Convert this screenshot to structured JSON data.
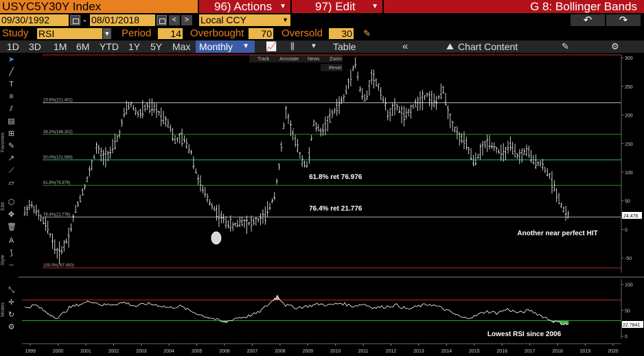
{
  "header": {
    "ticker": "USYC5Y30Y Index",
    "actions_label": "96) Actions",
    "edit_label": "97) Edit",
    "study_title": "G 8: Bollinger Bands"
  },
  "range": {
    "start_date": "09/30/1992",
    "dash": "-",
    "end_date": "08/01/2018",
    "currency": "Local CCY"
  },
  "study_row": {
    "study_label": "Study",
    "study_value": "RSI",
    "period_label": "Period",
    "period_value": "14",
    "overbought_label": "Overbought",
    "overbought_value": "70",
    "oversold_label": "Oversold",
    "oversold_value": "30"
  },
  "toolbar": {
    "periods": [
      "1D",
      "3D",
      "1M",
      "6M",
      "YTD",
      "1Y",
      "5Y",
      "Max"
    ],
    "frequency": "Monthly",
    "table_label": "Table",
    "chart_content_label": "Chart Content"
  },
  "chart_tools": {
    "track": "Track",
    "annotate": "Annotate",
    "news": "News",
    "zoom": "Zoom",
    "reset": "Reset"
  },
  "side_labels": {
    "favorites": "Favorites",
    "edit": "Edit",
    "style": "Style",
    "modes": "Modes"
  },
  "colors": {
    "price": "#ffffff",
    "fib_0": "#c82a2a",
    "fib_236": "#bfbfbf",
    "fib_382": "#2ea52e",
    "fib_50": "#2ab3b3",
    "fib_618": "#2ea52e",
    "fib_764": "#bfbfbf",
    "fib_100": "#c82a2a",
    "rsi_overbought": "#c82a2a",
    "rsi_oversold": "#2ea52e",
    "highlight_circle": "#d8d8d8"
  },
  "chart_data": [
    {
      "type": "line",
      "subtype": "ohlc-bar",
      "series": [
        {
          "x": [
            1999,
            2000,
            2001,
            2002,
            2003,
            2004,
            2005,
            2006,
            2007,
            2008,
            2009,
            2010,
            2011,
            2012,
            2013,
            2014,
            2015,
            2016,
            2017,
            2018
          ],
          "values": [
            15,
            -35,
            55,
            200,
            195,
            155,
            40,
            10,
            20,
            170,
            180,
            225,
            260,
            200,
            230,
            190,
            120,
            135,
            100,
            24.5
          ]
        }
      ],
      "price_path": [
        [
          1998.8,
          30
        ],
        [
          1999.0,
          45
        ],
        [
          1999.3,
          25
        ],
        [
          1999.6,
          5
        ],
        [
          1999.8,
          -20
        ],
        [
          2000.0,
          -45
        ],
        [
          2000.2,
          -30
        ],
        [
          2000.4,
          -10
        ],
        [
          2000.6,
          30
        ],
        [
          2000.8,
          55
        ],
        [
          2001.0,
          80
        ],
        [
          2001.2,
          110
        ],
        [
          2001.4,
          145
        ],
        [
          2001.6,
          125
        ],
        [
          2001.9,
          135
        ],
        [
          2002.2,
          165
        ],
        [
          2002.4,
          205
        ],
        [
          2002.6,
          220
        ],
        [
          2002.9,
          200
        ],
        [
          2003.2,
          215
        ],
        [
          2003.5,
          210
        ],
        [
          2003.8,
          195
        ],
        [
          2004.0,
          185
        ],
        [
          2004.2,
          155
        ],
        [
          2004.5,
          160
        ],
        [
          2004.8,
          135
        ],
        [
          2005.0,
          95
        ],
        [
          2005.2,
          70
        ],
        [
          2005.5,
          45
        ],
        [
          2005.8,
          25
        ],
        [
          2006.0,
          15
        ],
        [
          2006.3,
          5
        ],
        [
          2006.6,
          15
        ],
        [
          2006.9,
          10
        ],
        [
          2007.2,
          15
        ],
        [
          2007.5,
          25
        ],
        [
          2007.8,
          60
        ],
        [
          2008.0,
          120
        ],
        [
          2008.2,
          210
        ],
        [
          2008.5,
          160
        ],
        [
          2008.8,
          120
        ],
        [
          2009.0,
          110
        ],
        [
          2009.2,
          185
        ],
        [
          2009.5,
          170
        ],
        [
          2009.8,
          195
        ],
        [
          2010.0,
          210
        ],
        [
          2010.3,
          230
        ],
        [
          2010.5,
          260
        ],
        [
          2010.7,
          295
        ],
        [
          2010.9,
          240
        ],
        [
          2011.1,
          225
        ],
        [
          2011.3,
          270
        ],
        [
          2011.6,
          245
        ],
        [
          2011.9,
          200
        ],
        [
          2012.2,
          215
        ],
        [
          2012.5,
          195
        ],
        [
          2012.8,
          215
        ],
        [
          2013.0,
          225
        ],
        [
          2013.3,
          235
        ],
        [
          2013.6,
          220
        ],
        [
          2013.9,
          245
        ],
        [
          2014.1,
          195
        ],
        [
          2014.4,
          165
        ],
        [
          2014.7,
          150
        ],
        [
          2015.0,
          115
        ],
        [
          2015.2,
          135
        ],
        [
          2015.5,
          155
        ],
        [
          2015.8,
          140
        ],
        [
          2016.0,
          130
        ],
        [
          2016.3,
          145
        ],
        [
          2016.6,
          125
        ],
        [
          2016.9,
          140
        ],
        [
          2017.1,
          120
        ],
        [
          2017.4,
          115
        ],
        [
          2017.7,
          95
        ],
        [
          2018.0,
          60
        ],
        [
          2018.2,
          35
        ],
        [
          2018.4,
          24.5
        ]
      ],
      "xlim": [
        1998.7,
        2020.3
      ],
      "ylim": [
        -75,
        305
      ],
      "y_ticks": [
        -50,
        0,
        50,
        100,
        150,
        200,
        250,
        300
      ],
      "x_ticks": [
        1999,
        2000,
        2001,
        2002,
        2003,
        2004,
        2005,
        2006,
        2007,
        2008,
        2009,
        2010,
        2011,
        2012,
        2013,
        2014,
        2015,
        2016,
        2017,
        2018,
        2019,
        2020
      ],
      "last_value": "24.476",
      "fib_levels": [
        {
          "pct": "0",
          "value": 305,
          "label": "",
          "color_key": "fib_0"
        },
        {
          "pct": "23.6",
          "value": 221.401,
          "label": "23.6%(221.401)",
          "color_key": "fib_236"
        },
        {
          "pct": "38.2",
          "value": 166.202,
          "label": "38.2%(166.202)",
          "color_key": "fib_382"
        },
        {
          "pct": "50.0",
          "value": 121.589,
          "label": "50.0%(121.589)",
          "color_key": "fib_50"
        },
        {
          "pct": "61.8",
          "value": 76.976,
          "label": "61.8%(76.976)",
          "color_key": "fib_618"
        },
        {
          "pct": "76.4",
          "value": 21.776,
          "label": "76.4%(21.776)",
          "color_key": "fib_764"
        },
        {
          "pct": "100.0",
          "value": -67.45,
          "label": "100.0%(-67.450)",
          "color_key": "fib_100"
        }
      ],
      "annotations": [
        {
          "text": "61.8% ret 76.976",
          "x": 2010.0,
          "y": 88
        },
        {
          "text": "76.4% ret 21.776",
          "x": 2010.0,
          "y": 33
        },
        {
          "text": "Another near perfect HIT",
          "x": 2018.0,
          "y": -10
        }
      ],
      "circle_marker": {
        "x": 2005.7,
        "y": -15
      }
    },
    {
      "type": "line",
      "series": [
        {
          "x": [
            1999,
            2000,
            2001,
            2002,
            2003,
            2004,
            2005,
            2006,
            2007,
            2008,
            2009,
            2010,
            2011,
            2012,
            2013,
            2014,
            2015,
            2016,
            2017,
            2018
          ],
          "values": [
            55,
            40,
            65,
            60,
            62,
            55,
            38,
            25,
            35,
            78,
            60,
            62,
            60,
            58,
            60,
            38,
            45,
            50,
            45,
            22.8
          ]
        }
      ],
      "rsi_path": [
        [
          1998.8,
          55
        ],
        [
          1999.2,
          60
        ],
        [
          1999.6,
          45
        ],
        [
          2000.0,
          35
        ],
        [
          2000.4,
          55
        ],
        [
          2000.8,
          62
        ],
        [
          2001.2,
          68
        ],
        [
          2001.6,
          60
        ],
        [
          2002.0,
          62
        ],
        [
          2002.4,
          65
        ],
        [
          2002.8,
          58
        ],
        [
          2003.2,
          63
        ],
        [
          2003.6,
          60
        ],
        [
          2004.0,
          55
        ],
        [
          2004.4,
          58
        ],
        [
          2004.8,
          48
        ],
        [
          2005.2,
          40
        ],
        [
          2005.6,
          34
        ],
        [
          2006.0,
          26
        ],
        [
          2006.4,
          35
        ],
        [
          2006.8,
          38
        ],
        [
          2007.2,
          45
        ],
        [
          2007.6,
          62
        ],
        [
          2007.9,
          78
        ],
        [
          2008.2,
          60
        ],
        [
          2008.6,
          55
        ],
        [
          2009.0,
          58
        ],
        [
          2009.4,
          62
        ],
        [
          2009.8,
          60
        ],
        [
          2010.2,
          64
        ],
        [
          2010.6,
          58
        ],
        [
          2011.0,
          62
        ],
        [
          2011.4,
          55
        ],
        [
          2011.8,
          57
        ],
        [
          2012.2,
          60
        ],
        [
          2012.6,
          52
        ],
        [
          2013.0,
          58
        ],
        [
          2013.4,
          62
        ],
        [
          2013.8,
          55
        ],
        [
          2014.2,
          45
        ],
        [
          2014.6,
          35
        ],
        [
          2015.0,
          38
        ],
        [
          2015.4,
          48
        ],
        [
          2015.8,
          45
        ],
        [
          2016.2,
          52
        ],
        [
          2016.6,
          45
        ],
        [
          2017.0,
          50
        ],
        [
          2017.4,
          40
        ],
        [
          2017.8,
          30
        ],
        [
          2018.2,
          24
        ],
        [
          2018.4,
          22.8
        ]
      ],
      "ylim": [
        -5,
        110
      ],
      "y_ticks": [
        0,
        50,
        100
      ],
      "overbought": 70,
      "oversold": 30,
      "last_value": "22.7841",
      "annotations": [
        {
          "text": "Lowest RSI since 2006",
          "x": 2016.8,
          "y": 0
        }
      ]
    }
  ]
}
